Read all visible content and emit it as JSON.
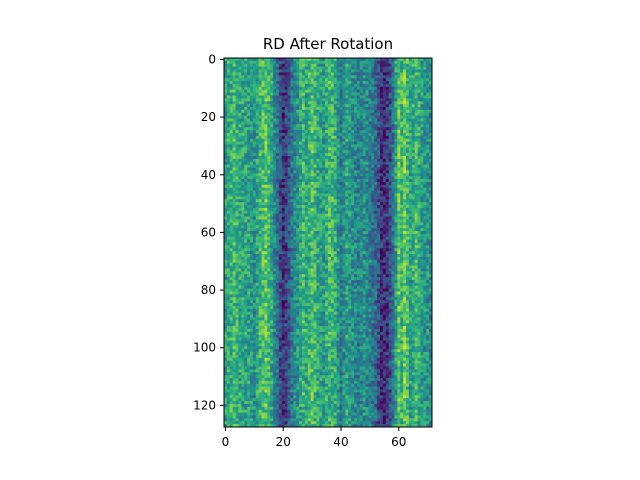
{
  "chart_data": {
    "type": "heatmap",
    "title": "RD After Rotation",
    "xlabel": "",
    "ylabel": "",
    "colormap": "viridis",
    "n_rows": 128,
    "n_cols": 72,
    "xlim": [
      -0.5,
      71.5
    ],
    "ylim": [
      127.5,
      -0.5
    ],
    "x_ticks": [
      0,
      20,
      40,
      60
    ],
    "y_ticks": [
      0,
      20,
      40,
      60,
      80,
      100,
      120
    ],
    "grid": false,
    "legend": "none",
    "column_profile": {
      "description_free_values_0_to_1": true,
      "x": [
        0,
        3,
        5,
        8,
        10,
        12,
        14,
        16,
        18,
        19,
        20,
        21,
        22,
        23,
        25,
        27,
        28,
        30,
        32,
        34,
        36,
        38,
        40,
        42,
        44,
        46,
        48,
        50,
        52,
        53,
        54,
        55,
        56,
        57,
        58,
        59,
        60,
        61,
        62,
        64,
        66,
        68,
        71
      ],
      "level": [
        0.56,
        0.68,
        0.6,
        0.56,
        0.5,
        0.66,
        0.74,
        0.58,
        0.38,
        0.22,
        0.14,
        0.2,
        0.28,
        0.4,
        0.52,
        0.66,
        0.6,
        0.72,
        0.6,
        0.54,
        0.68,
        0.62,
        0.42,
        0.58,
        0.5,
        0.44,
        0.5,
        0.44,
        0.34,
        0.24,
        0.14,
        0.12,
        0.16,
        0.24,
        0.4,
        0.56,
        0.74,
        0.66,
        0.78,
        0.56,
        0.66,
        0.54,
        0.5
      ]
    }
  }
}
